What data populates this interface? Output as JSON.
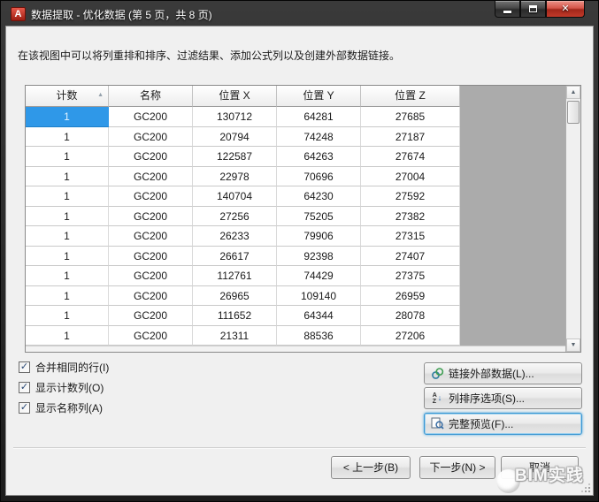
{
  "window": {
    "title": "数据提取 - 优化数据 (第 5 页，共 8 页)"
  },
  "description": "在该视图中可以将列重排和排序、过滤结果、添加公式列以及创建外部数据链接。",
  "table": {
    "columns": [
      "计数",
      "名称",
      "位置 X",
      "位置 Y",
      "位置 Z"
    ],
    "sort": {
      "column": "计数",
      "direction": "ascending"
    },
    "selected_cell": {
      "row": 0,
      "col": 0
    },
    "rows": [
      [
        "1",
        "GC200",
        "130712",
        "64281",
        "27685"
      ],
      [
        "1",
        "GC200",
        "20794",
        "74248",
        "27187"
      ],
      [
        "1",
        "GC200",
        "122587",
        "64263",
        "27674"
      ],
      [
        "1",
        "GC200",
        "22978",
        "70696",
        "27004"
      ],
      [
        "1",
        "GC200",
        "140704",
        "64230",
        "27592"
      ],
      [
        "1",
        "GC200",
        "27256",
        "75205",
        "27382"
      ],
      [
        "1",
        "GC200",
        "26233",
        "79906",
        "27315"
      ],
      [
        "1",
        "GC200",
        "26617",
        "92398",
        "27407"
      ],
      [
        "1",
        "GC200",
        "112761",
        "74429",
        "27375"
      ],
      [
        "1",
        "GC200",
        "26965",
        "109140",
        "26959"
      ],
      [
        "1",
        "GC200",
        "111652",
        "64344",
        "28078"
      ],
      [
        "1",
        "GC200",
        "21311",
        "88536",
        "27206"
      ]
    ]
  },
  "options": {
    "combine_rows": {
      "label": "合并相同的行(I)",
      "checked": true
    },
    "show_count": {
      "label": "显示计数列(O)",
      "checked": true
    },
    "show_name": {
      "label": "显示名称列(A)",
      "checked": true
    }
  },
  "side_buttons": {
    "link_external": "链接外部数据(L)...",
    "sort_columns": "列排序选项(S)...",
    "full_preview": "完整预览(F)..."
  },
  "nav": {
    "back": "< 上一步(B)",
    "next": "下一步(N) >",
    "cancel": "取消"
  },
  "watermark": "BIM实践",
  "icons": {
    "app_logo": "A",
    "close": "✕",
    "check": "✓",
    "sort_ascending": "▲",
    "scroll_up": "▲",
    "scroll_down": "▼",
    "sort_letter_a": "A",
    "sort_letter_z": "Z",
    "sort_down_arrow": "↓"
  },
  "colors": {
    "selection_blue": "#2f98e8",
    "titlebar_dark": "#2a2a2a",
    "close_button_red": "#c13a2a",
    "dialog_background": "#f0f0f0",
    "table_filler_gray": "#ababab",
    "focus_border_blue": "#3a96d2"
  }
}
